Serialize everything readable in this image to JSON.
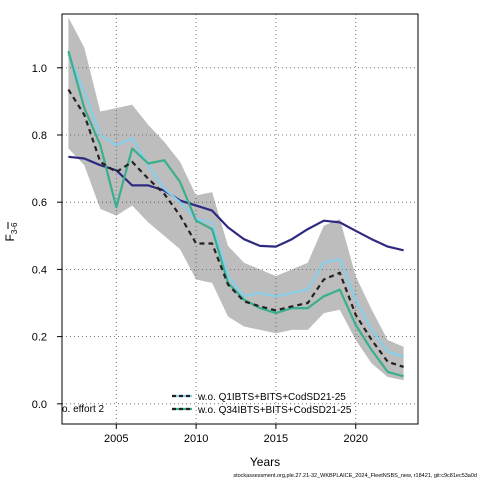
{
  "chart_data": {
    "type": "line",
    "title": "",
    "xlabel": "Years",
    "ylabel_main": "F",
    "ylabel_sub": "3-6",
    "xlim": [
      2001.6,
      2023.9
    ],
    "ylim": [
      -0.06,
      1.16
    ],
    "x_ticks": [
      2005,
      2010,
      2015,
      2020
    ],
    "y_ticks": [
      0.0,
      0.2,
      0.4,
      0.6,
      0.8,
      1.0
    ],
    "y_tick_labels": [
      "0.0",
      "0.2",
      "0.4",
      "0.6",
      "0.8",
      "1.0"
    ],
    "grid": true,
    "corner_label": "o. effort 2",
    "footer": "stockassessment.org,ple.27.21-32_WKBPLAICE_2024_FleetNSBS_new, r18421, git:c9c81ec53a0d",
    "legend": {
      "placement": "bottom-center",
      "entries": [
        {
          "label": "w.o. Q1IBTS+BITS+CodSD21-25",
          "color": "#87ceeb"
        },
        {
          "label": "w.o. Q34IBTS+BITS+CodSD21-25",
          "color": "#3aaf8f"
        }
      ]
    },
    "years": [
      2002,
      2003,
      2004,
      2005,
      2006,
      2007,
      2008,
      2009,
      2010,
      2011,
      2012,
      2013,
      2014,
      2015,
      2016,
      2017,
      2018,
      2019,
      2020,
      2021,
      2022,
      2023
    ],
    "band": {
      "color": "#bdbdbd",
      "upper": [
        1.15,
        1.06,
        0.87,
        0.88,
        0.89,
        0.83,
        0.78,
        0.72,
        0.62,
        0.63,
        0.47,
        0.42,
        0.4,
        0.38,
        0.4,
        0.42,
        0.53,
        0.55,
        0.38,
        0.28,
        0.19,
        0.17
      ],
      "lower": [
        0.76,
        0.71,
        0.58,
        0.56,
        0.59,
        0.54,
        0.5,
        0.46,
        0.37,
        0.36,
        0.26,
        0.23,
        0.22,
        0.21,
        0.22,
        0.22,
        0.27,
        0.28,
        0.19,
        0.12,
        0.08,
        0.07
      ]
    },
    "series": [
      {
        "color": "#2e2a82",
        "dash": "",
        "width": 2.2,
        "values": [
          0.735,
          0.73,
          0.71,
          0.695,
          0.65,
          0.65,
          0.635,
          0.605,
          0.59,
          0.575,
          0.525,
          0.49,
          0.47,
          0.468,
          0.49,
          0.52,
          0.545,
          0.54,
          0.515,
          0.49,
          0.468,
          0.457
        ]
      },
      {
        "color": "#87ceeb",
        "dash": "",
        "width": 2.2,
        "values": [
          1.04,
          0.93,
          0.8,
          0.77,
          0.79,
          0.71,
          0.64,
          0.6,
          0.55,
          0.54,
          0.38,
          0.32,
          0.33,
          0.32,
          0.33,
          0.34,
          0.42,
          0.43,
          0.31,
          0.22,
          0.155,
          0.14
        ]
      },
      {
        "color": "#3aaf8f",
        "dash": "",
        "width": 2.2,
        "values": [
          1.05,
          0.88,
          0.77,
          0.585,
          0.76,
          0.715,
          0.725,
          0.66,
          0.545,
          0.52,
          0.36,
          0.31,
          0.285,
          0.27,
          0.285,
          0.285,
          0.32,
          0.34,
          0.235,
          0.16,
          0.095,
          0.082
        ]
      },
      {
        "color": "#222222",
        "dash": "5,4",
        "width": 2.2,
        "values": [
          0.935,
          0.86,
          0.72,
          0.69,
          0.72,
          0.67,
          0.625,
          0.56,
          0.477,
          0.477,
          0.355,
          0.305,
          0.29,
          0.278,
          0.29,
          0.3,
          0.37,
          0.39,
          0.265,
          0.19,
          0.125,
          0.11
        ]
      }
    ]
  }
}
